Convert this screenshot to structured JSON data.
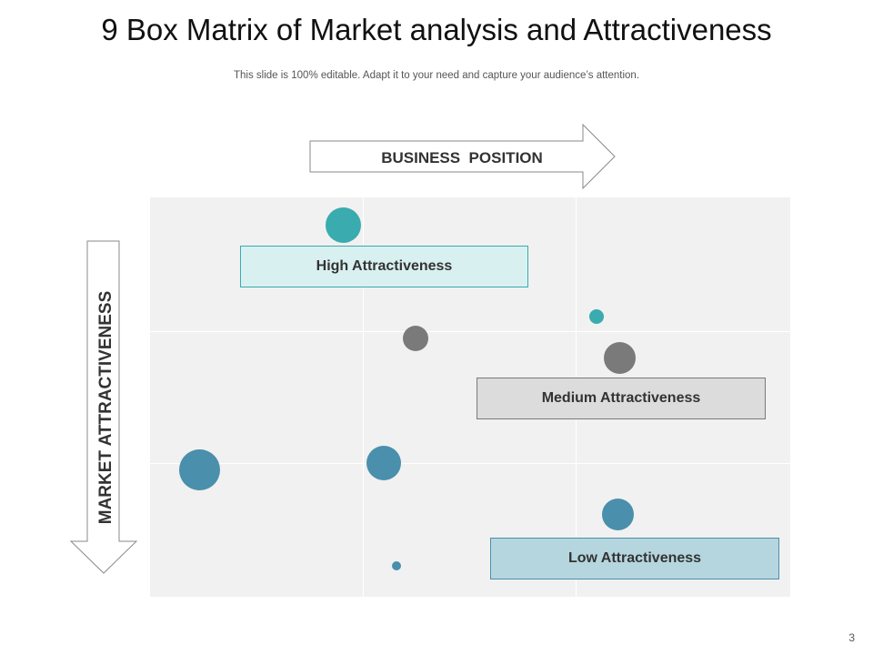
{
  "title": "9 Box Matrix of Market analysis and Attractiveness",
  "subtitle": "This slide is 100% editable. Adapt it to your need and capture your audience’s attention.",
  "page_number": "3",
  "axes": {
    "x_label": "BUSINESS  POSITION",
    "y_label": "MARKET ATTRACTIVENESS"
  },
  "labels": {
    "high": "High Attractiveness",
    "medium": "Medium Attractiveness",
    "low": "Low Attractiveness"
  },
  "colors": {
    "teal": "#3aabae",
    "gray": "#7a7a7a",
    "blue": "#4a8fab",
    "high_fill": "#d9f0f1",
    "medium_fill": "#dcdcdc",
    "low_fill": "#b6d6df"
  }
}
